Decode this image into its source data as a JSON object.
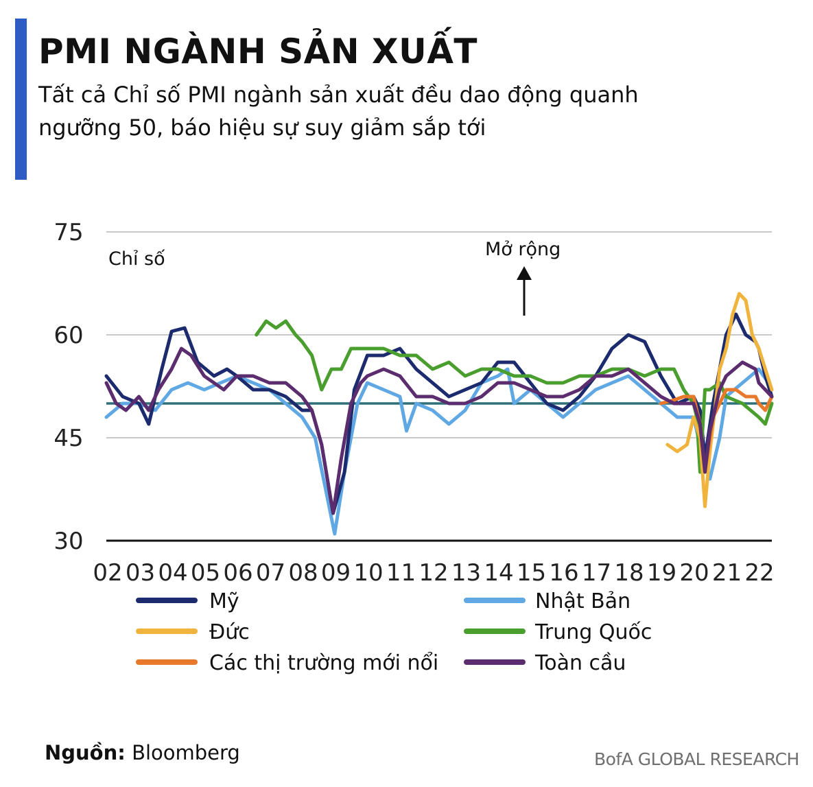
{
  "header": {
    "title": "PMI NGÀNH SẢN XUẤT",
    "subtitle": "Tất cả Chỉ số PMI ngành sản xuất đều dao động quanh ngưỡng 50, báo hiệu sự suy giảm sắp tới"
  },
  "footer": {
    "source_label": "Nguồn:",
    "source_value": "Bloomberg",
    "credit": "BofA GLOBAL RESEARCH"
  },
  "chart_data": {
    "type": "line",
    "ylabel": "Chỉ số",
    "annotation": "Mở rộng",
    "ylim": [
      30,
      75
    ],
    "yticks": [
      75,
      60,
      45,
      30
    ],
    "reference_line": 50,
    "xlim": [
      2002,
      2022.4
    ],
    "x_tick_labels": [
      "02",
      "03",
      "04",
      "05",
      "06",
      "07",
      "08",
      "09",
      "10",
      "11",
      "12",
      "13",
      "14",
      "15",
      "16",
      "17",
      "18",
      "19",
      "20",
      "21",
      "22"
    ],
    "series": [
      {
        "name": "Mỹ",
        "color": "#1c2b6e",
        "x": [
          2002.0,
          2002.5,
          2003.0,
          2003.3,
          2003.7,
          2004.0,
          2004.4,
          2004.8,
          2005.3,
          2005.7,
          2006.0,
          2006.5,
          2007.0,
          2007.5,
          2008.0,
          2008.3,
          2008.6,
          2008.95,
          2009.3,
          2009.6,
          2010.0,
          2010.5,
          2011.0,
          2011.5,
          2012.0,
          2012.5,
          2013.0,
          2013.5,
          2014.0,
          2014.5,
          2015.0,
          2015.5,
          2016.0,
          2016.5,
          2017.0,
          2017.5,
          2018.0,
          2018.5,
          2019.0,
          2019.5,
          2020.0,
          2020.2,
          2020.35,
          2020.6,
          2021.0,
          2021.3,
          2021.6,
          2021.9,
          2022.0,
          2022.2,
          2022.4
        ],
        "y": [
          54,
          51,
          50,
          47,
          55,
          60.5,
          61,
          56,
          54,
          55,
          54,
          52,
          52,
          51,
          49,
          49,
          44,
          34,
          40,
          52,
          57,
          57,
          58,
          55,
          53,
          51,
          52,
          53,
          56,
          56,
          53,
          50,
          49,
          51,
          54,
          58,
          60,
          59,
          54,
          50,
          51,
          49,
          42,
          50,
          60,
          63,
          60,
          59,
          58,
          54,
          51
        ]
      },
      {
        "name": "Nhật Bản",
        "color": "#5fa8e4",
        "x": [
          2002.0,
          2002.5,
          2003.0,
          2003.5,
          2004.0,
          2004.5,
          2005.0,
          2005.5,
          2006.0,
          2006.5,
          2007.0,
          2007.5,
          2008.0,
          2008.4,
          2008.7,
          2009.0,
          2009.3,
          2009.7,
          2010.0,
          2010.5,
          2011.0,
          2011.2,
          2011.5,
          2012.0,
          2012.5,
          2013.0,
          2013.5,
          2014.0,
          2014.3,
          2014.5,
          2015.0,
          2015.5,
          2016.0,
          2016.5,
          2017.0,
          2017.5,
          2018.0,
          2018.5,
          2019.0,
          2019.5,
          2020.0,
          2020.3,
          2020.5,
          2020.8,
          2021.0,
          2021.5,
          2022.0,
          2022.3
        ],
        "y": [
          48,
          50,
          50,
          49,
          52,
          53,
          52,
          53,
          54,
          53,
          52,
          50,
          48,
          45,
          38,
          31,
          40,
          50,
          53,
          52,
          51,
          46,
          50,
          49,
          47,
          49,
          53,
          54,
          55,
          50,
          52,
          50,
          48,
          50,
          52,
          53,
          54,
          52,
          50,
          48,
          48,
          42,
          39,
          45,
          51,
          53,
          55,
          53
        ]
      },
      {
        "name": "Đức",
        "color": "#f0b33b",
        "x": [
          2019.2,
          2019.5,
          2019.8,
          2020.0,
          2020.2,
          2020.35,
          2020.5,
          2020.8,
          2021.0,
          2021.2,
          2021.4,
          2021.6,
          2021.8,
          2022.0,
          2022.2,
          2022.4
        ],
        "y": [
          44,
          43,
          44,
          48,
          45,
          35,
          43,
          55,
          58,
          63,
          66,
          65,
          60,
          58,
          55,
          52
        ]
      },
      {
        "name": "Trung Quốc",
        "color": "#4a9e2e",
        "x": [
          2006.6,
          2006.9,
          2007.2,
          2007.5,
          2007.8,
          2008.0,
          2008.3,
          2008.6,
          2008.9,
          2009.2,
          2009.5,
          2009.8,
          2010.0,
          2010.5,
          2011.0,
          2011.5,
          2012.0,
          2012.5,
          2013.0,
          2013.5,
          2014.0,
          2014.5,
          2015.0,
          2015.5,
          2016.0,
          2016.5,
          2017.0,
          2017.5,
          2018.0,
          2018.5,
          2019.0,
          2019.4,
          2019.7,
          2020.0,
          2020.1,
          2020.2,
          2020.35,
          2020.5,
          2020.8,
          2021.0,
          2021.5,
          2022.0,
          2022.2,
          2022.4
        ],
        "y": [
          60,
          62,
          61,
          62,
          60,
          59,
          57,
          52,
          55,
          55,
          58,
          58,
          58,
          58,
          57,
          57,
          55,
          56,
          54,
          55,
          55,
          54,
          54,
          53,
          53,
          54,
          54,
          55,
          55,
          54,
          55,
          55,
          52,
          50,
          48,
          40,
          52,
          52,
          53,
          51,
          50,
          48,
          47,
          50
        ]
      },
      {
        "name": "Các thị trường mới nổi",
        "color": "#e8792a",
        "x": [
          2019.0,
          2019.4,
          2019.7,
          2020.0,
          2020.2,
          2020.35,
          2020.6,
          2020.9,
          2021.0,
          2021.3,
          2021.6,
          2021.9,
          2022.0,
          2022.2,
          2022.4
        ],
        "y": [
          50,
          50.5,
          51,
          51,
          47,
          40,
          48,
          51,
          52,
          52,
          51,
          51,
          50,
          49,
          51
        ]
      },
      {
        "name": "Toàn cầu",
        "color": "#5c2d6e",
        "x": [
          2002.0,
          2002.3,
          2002.6,
          2003.0,
          2003.3,
          2003.6,
          2004.0,
          2004.3,
          2004.6,
          2005.0,
          2005.3,
          2005.6,
          2006.0,
          2006.5,
          2007.0,
          2007.5,
          2008.0,
          2008.3,
          2008.6,
          2008.95,
          2009.2,
          2009.5,
          2009.8,
          2010.0,
          2010.5,
          2011.0,
          2011.5,
          2012.0,
          2012.5,
          2013.0,
          2013.5,
          2014.0,
          2014.5,
          2015.0,
          2015.5,
          2016.0,
          2016.5,
          2017.0,
          2017.5,
          2018.0,
          2018.5,
          2019.0,
          2019.4,
          2019.7,
          2020.0,
          2020.2,
          2020.35,
          2020.5,
          2020.8,
          2021.0,
          2021.5,
          2021.9,
          2022.0,
          2022.2,
          2022.4
        ],
        "y": [
          53,
          50,
          49,
          51,
          49,
          52,
          55,
          58,
          57,
          54,
          53,
          52,
          54,
          54,
          53,
          53,
          51,
          49,
          44,
          34,
          42,
          50,
          53,
          54,
          55,
          54,
          51,
          51,
          50,
          50,
          51,
          53,
          53,
          52,
          51,
          51,
          52,
          54,
          54,
          55,
          53,
          51,
          50,
          50,
          50,
          47,
          40,
          46,
          52,
          54,
          56,
          55,
          53,
          52,
          51
        ]
      }
    ]
  }
}
